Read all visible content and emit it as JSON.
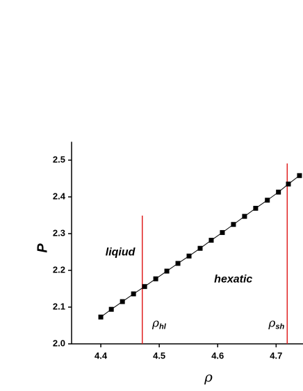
{
  "chart_data": {
    "type": "line",
    "xlabel": "ρ",
    "ylabel": "P",
    "x": [
      4.4,
      4.418,
      4.437,
      4.456,
      4.475,
      4.494,
      4.513,
      4.532,
      4.551,
      4.57,
      4.589,
      4.608,
      4.627,
      4.646,
      4.665,
      4.685,
      4.704,
      4.721,
      4.74
    ],
    "series": [
      {
        "color": "#000000",
        "values": [
          2.073,
          2.094,
          2.115,
          2.136,
          2.156,
          2.177,
          2.198,
          2.219,
          2.239,
          2.26,
          2.282,
          2.303,
          2.325,
          2.347,
          2.369,
          2.391,
          2.413,
          2.435,
          2.458
        ]
      }
    ],
    "xlim": [
      4.35,
      4.746
    ],
    "ylim": [
      2.0,
      2.55
    ],
    "xticks": [
      4.4,
      4.5,
      4.6,
      4.7
    ],
    "yticks": [
      {
        "value": 2.0,
        "label": "2.0"
      },
      2.1,
      2.2,
      2.3,
      2.4,
      2.5
    ],
    "vlines": [
      {
        "x": 4.471,
        "y": 2.349,
        "color": "#e02020"
      },
      {
        "x": 4.719,
        "y": 2.491,
        "color": "#e02020"
      }
    ],
    "annotations": [
      {
        "text": "liqiud",
        "x": 4.408,
        "y": 2.248
      },
      {
        "text": "hexatic",
        "x": 4.594,
        "y": 2.175
      },
      {
        "text": "ρ",
        "sub": "hl",
        "x": 4.488,
        "y": 2.056
      },
      {
        "text": "ρ",
        "sub": "sh",
        "x": 4.687,
        "y": 2.056
      }
    ]
  }
}
